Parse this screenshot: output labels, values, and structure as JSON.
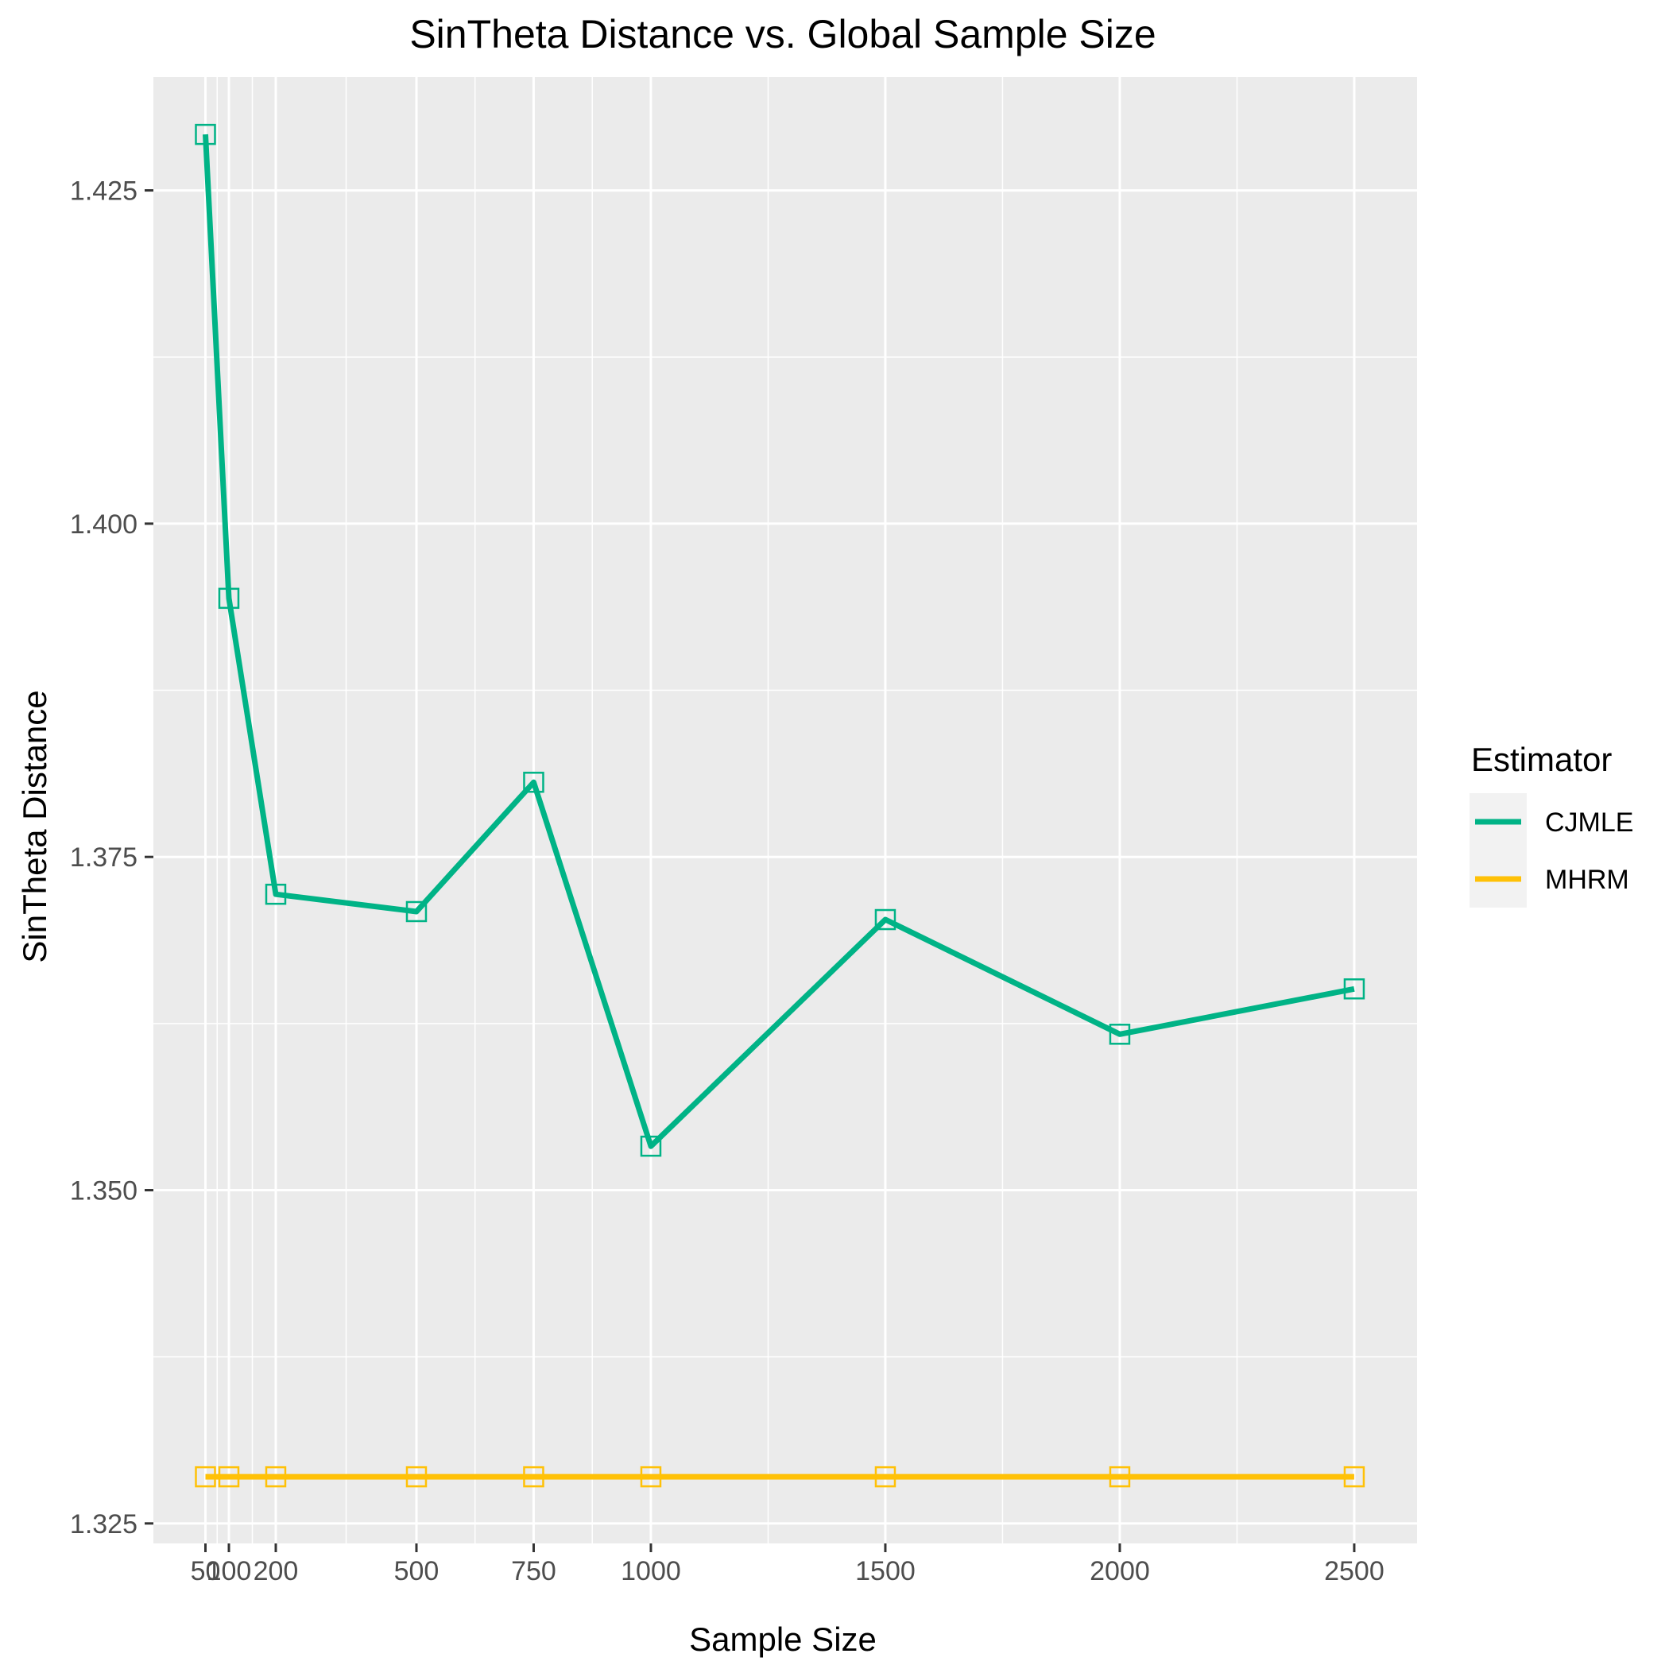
{
  "chart_data": {
    "type": "line",
    "title": "SinTheta Distance vs. Global Sample Size",
    "xlabel": "Sample Size",
    "ylabel": "SinTheta Distance",
    "x_ticks": [
      50,
      100,
      200,
      500,
      750,
      1000,
      1500,
      2000,
      2500
    ],
    "x_tick_labels": [
      "50",
      "100",
      "200",
      "500",
      "750",
      "1000",
      "1500",
      "2000",
      "2500"
    ],
    "y_ticks": [
      1.325,
      1.35,
      1.375,
      1.4,
      1.425
    ],
    "y_tick_labels": [
      "1.325",
      "1.350",
      "1.375",
      "1.400",
      "1.425"
    ],
    "xlim": [
      -61,
      2634
    ],
    "ylim": [
      1.3235,
      1.4335
    ],
    "grid": true,
    "legend_position": "right",
    "legend_title": "Estimator",
    "x": [
      50,
      100,
      200,
      500,
      750,
      1000,
      1500,
      2000,
      2500
    ],
    "series": [
      {
        "name": "CJMLE",
        "color": "#00B386",
        "values": [
          1.4292,
          1.3944,
          1.3722,
          1.3709,
          1.3806,
          1.3533,
          1.3703,
          1.3617,
          1.3651
        ]
      },
      {
        "name": "MHRM",
        "color": "#FFC107",
        "values": [
          1.3285,
          1.3285,
          1.3285,
          1.3285,
          1.3285,
          1.3285,
          1.3285,
          1.3285,
          1.3285
        ]
      }
    ]
  }
}
